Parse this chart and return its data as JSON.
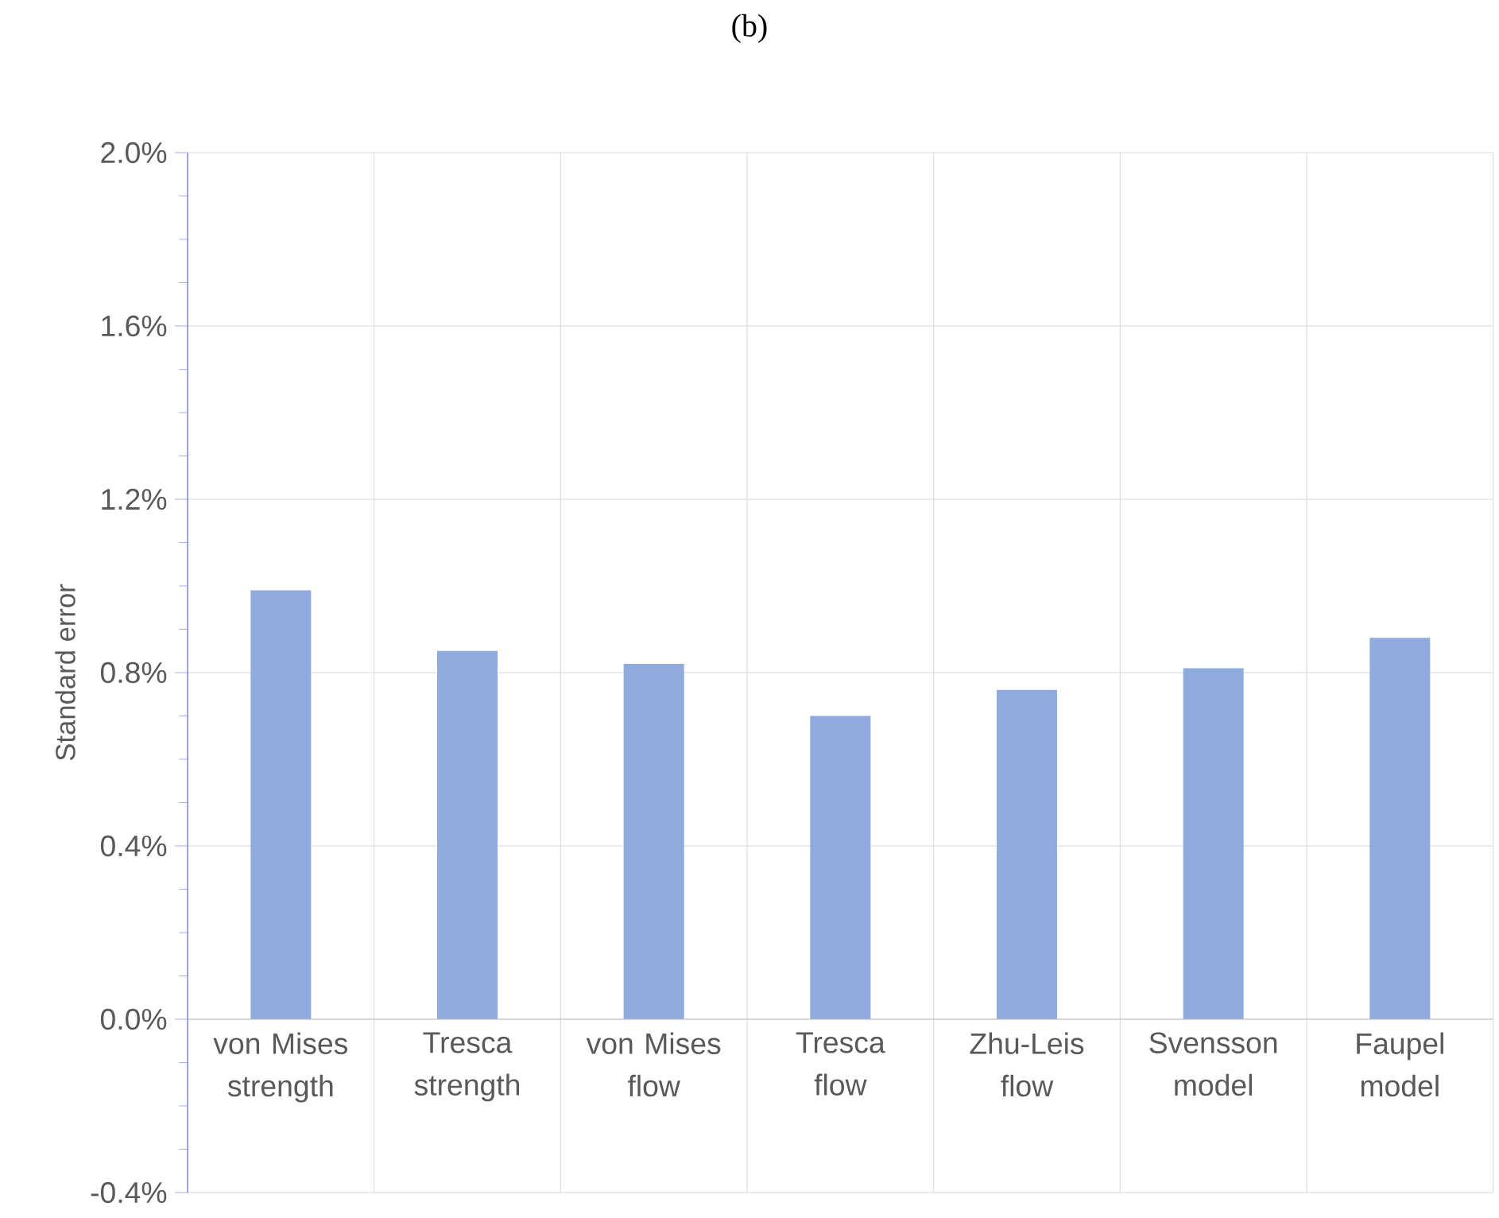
{
  "chart_data": {
    "type": "bar",
    "title": "(b)",
    "ylabel": "Standard error",
    "categories": [
      "von Mises strength",
      "Tresca strength",
      "von Mises flow",
      "Tresca flow",
      "Zhu-Leis flow",
      "Svensson model",
      "Faupel model"
    ],
    "values": [
      0.99,
      0.85,
      0.82,
      0.7,
      0.76,
      0.81,
      0.88
    ],
    "color": "#8faadc",
    "ylim": [
      -0.4,
      2.0
    ],
    "yticks": [
      {
        "value": -0.4,
        "label": "-0.4%"
      },
      {
        "value": -0.3,
        "label": null
      },
      {
        "value": -0.2,
        "label": null
      },
      {
        "value": -0.1,
        "label": null
      },
      {
        "value": 0.0,
        "label": "0.0%"
      },
      {
        "value": 0.1,
        "label": null
      },
      {
        "value": 0.2,
        "label": null
      },
      {
        "value": 0.3,
        "label": null
      },
      {
        "value": 0.4,
        "label": "0.4%"
      },
      {
        "value": 0.5,
        "label": null
      },
      {
        "value": 0.6,
        "label": null
      },
      {
        "value": 0.7,
        "label": null
      },
      {
        "value": 0.8,
        "label": "0.8%"
      },
      {
        "value": 0.9,
        "label": null
      },
      {
        "value": 1.0,
        "label": null
      },
      {
        "value": 1.1,
        "label": null
      },
      {
        "value": 1.2,
        "label": "1.2%"
      },
      {
        "value": 1.3,
        "label": null
      },
      {
        "value": 1.4,
        "label": null
      },
      {
        "value": 1.5,
        "label": null
      },
      {
        "value": 1.6,
        "label": "1.6%"
      },
      {
        "value": 1.7,
        "label": null
      },
      {
        "value": 1.8,
        "label": null
      },
      {
        "value": 1.9,
        "label": null
      },
      {
        "value": 2.0,
        "label": "2.0%"
      }
    ],
    "grid": true
  }
}
